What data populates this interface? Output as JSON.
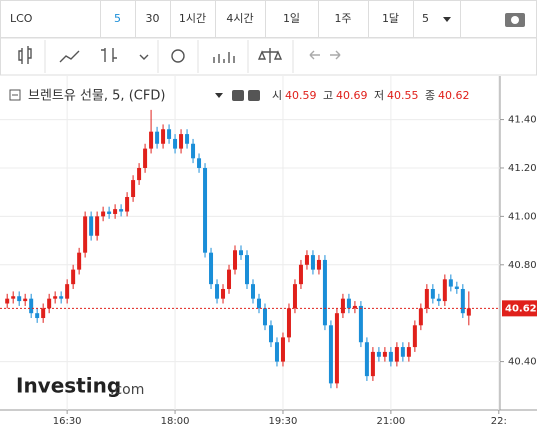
{
  "toolbar": {
    "symbol": "LCO",
    "intervals": [
      "5",
      "30",
      "1시간",
      "4시간",
      "1일",
      "1주",
      "1달"
    ],
    "interval_dropdown": "5"
  },
  "legend": {
    "ohlc_labels": [
      "시",
      "고",
      "저",
      "종"
    ]
  },
  "logo": {
    "name": "Investing",
    "suffix": ".com"
  },
  "chart_data": {
    "type": "candlestick",
    "title": "브렌트유 선물, 5, (CFD)",
    "up_color": "#e0201b",
    "down_color": "#1a8ed8",
    "grid": true,
    "xlim": [
      934,
      1351
    ],
    "xticks": [
      {
        "value": 990,
        "label": "16:30"
      },
      {
        "value": 1080,
        "label": "18:00"
      },
      {
        "value": 1170,
        "label": "19:30"
      },
      {
        "value": 1260,
        "label": "21:00"
      },
      {
        "value": 1350,
        "label": "22:"
      }
    ],
    "ylim": [
      40.2,
      41.58
    ],
    "yticks": [
      {
        "value": 40.4,
        "label": "40.40"
      },
      {
        "value": 40.8,
        "label": "40.80"
      },
      {
        "value": 41.0,
        "label": "41.00"
      },
      {
        "value": 41.2,
        "label": "41.20"
      },
      {
        "value": 41.4,
        "label": "41.40"
      }
    ],
    "x": [
      940,
      945,
      950,
      955,
      960,
      965,
      970,
      975,
      980,
      985,
      990,
      995,
      1000,
      1005,
      1010,
      1015,
      1020,
      1025,
      1030,
      1035,
      1040,
      1045,
      1050,
      1055,
      1060,
      1065,
      1070,
      1075,
      1080,
      1085,
      1090,
      1095,
      1100,
      1105,
      1110,
      1115,
      1120,
      1125,
      1130,
      1135,
      1140,
      1145,
      1150,
      1155,
      1160,
      1165,
      1170,
      1175,
      1180,
      1185,
      1190,
      1195,
      1200,
      1205,
      1210,
      1215,
      1220,
      1225,
      1230,
      1235,
      1240,
      1245,
      1250,
      1255,
      1260,
      1265,
      1270,
      1275,
      1280,
      1285,
      1290,
      1295,
      1300,
      1305,
      1310,
      1315,
      1320,
      1325
    ],
    "open": [
      40.64,
      40.66,
      40.67,
      40.65,
      40.66,
      40.6,
      40.58,
      40.62,
      40.66,
      40.67,
      40.66,
      40.72,
      40.78,
      40.85,
      41.0,
      40.92,
      41.0,
      41.02,
      41.01,
      41.03,
      41.02,
      41.08,
      41.15,
      41.2,
      41.28,
      41.35,
      41.3,
      41.36,
      41.32,
      41.28,
      41.34,
      41.3,
      41.24,
      41.2,
      40.85,
      40.72,
      40.66,
      40.7,
      40.78,
      40.86,
      40.84,
      40.72,
      40.66,
      40.62,
      40.55,
      40.48,
      40.4,
      40.5,
      40.62,
      40.72,
      40.8,
      40.84,
      40.78,
      40.82,
      40.55,
      40.31,
      40.6,
      40.66,
      40.62,
      40.63,
      40.48,
      40.34,
      40.44,
      40.42,
      40.44,
      40.4,
      40.46,
      40.42,
      40.46,
      40.55,
      40.62,
      40.7,
      40.66,
      40.65,
      40.74,
      40.71,
      40.7,
      40.59
    ],
    "high": [
      40.68,
      40.69,
      40.69,
      40.68,
      40.68,
      40.62,
      40.64,
      40.68,
      40.69,
      40.69,
      40.74,
      40.8,
      40.87,
      41.02,
      41.02,
      41.02,
      41.04,
      41.04,
      41.05,
      41.05,
      41.1,
      41.17,
      41.22,
      41.3,
      41.44,
      41.37,
      41.38,
      41.38,
      41.34,
      41.36,
      41.36,
      41.32,
      41.26,
      41.22,
      40.87,
      40.74,
      40.72,
      40.8,
      40.88,
      40.88,
      40.86,
      40.74,
      40.68,
      40.64,
      40.57,
      40.5,
      40.52,
      40.64,
      40.74,
      40.82,
      40.86,
      40.86,
      40.84,
      40.84,
      40.57,
      40.62,
      40.68,
      40.68,
      40.65,
      40.65,
      40.5,
      40.46,
      40.46,
      40.46,
      40.46,
      40.48,
      40.48,
      40.48,
      40.57,
      40.64,
      40.72,
      40.72,
      40.68,
      40.76,
      40.76,
      40.73,
      40.72,
      40.69
    ],
    "low": [
      40.62,
      40.64,
      40.63,
      40.63,
      40.58,
      40.56,
      40.56,
      40.6,
      40.64,
      40.64,
      40.64,
      40.7,
      40.76,
      40.83,
      40.9,
      40.9,
      40.98,
      40.99,
      40.99,
      41.0,
      41.0,
      41.06,
      41.13,
      41.18,
      41.26,
      41.28,
      41.28,
      41.3,
      41.26,
      41.26,
      41.28,
      41.22,
      41.18,
      40.83,
      40.7,
      40.64,
      40.64,
      40.68,
      40.76,
      40.82,
      40.7,
      40.64,
      40.6,
      40.53,
      40.46,
      40.38,
      40.38,
      40.48,
      40.6,
      40.7,
      40.78,
      40.76,
      40.76,
      40.53,
      40.29,
      40.29,
      40.58,
      40.6,
      40.6,
      40.46,
      40.32,
      40.32,
      40.4,
      40.4,
      40.38,
      40.38,
      40.4,
      40.4,
      40.44,
      40.53,
      40.6,
      40.64,
      40.63,
      40.63,
      40.69,
      40.68,
      40.58,
      40.55
    ],
    "close": [
      40.66,
      40.67,
      40.65,
      40.66,
      40.6,
      40.58,
      40.62,
      40.66,
      40.67,
      40.66,
      40.72,
      40.78,
      40.85,
      41.0,
      40.92,
      41.0,
      41.02,
      41.01,
      41.03,
      41.02,
      41.08,
      41.15,
      41.2,
      41.28,
      41.35,
      41.3,
      41.36,
      41.32,
      41.28,
      41.34,
      41.3,
      41.24,
      41.2,
      40.85,
      40.72,
      40.66,
      40.7,
      40.78,
      40.86,
      40.84,
      40.72,
      40.66,
      40.62,
      40.55,
      40.48,
      40.4,
      40.5,
      40.62,
      40.72,
      40.8,
      40.84,
      40.78,
      40.82,
      40.55,
      40.31,
      40.6,
      40.66,
      40.62,
      40.63,
      40.48,
      40.34,
      40.44,
      40.42,
      40.44,
      40.4,
      40.46,
      40.42,
      40.46,
      40.55,
      40.62,
      40.7,
      40.66,
      40.65,
      40.74,
      40.71,
      40.7,
      40.6,
      40.62
    ]
  }
}
